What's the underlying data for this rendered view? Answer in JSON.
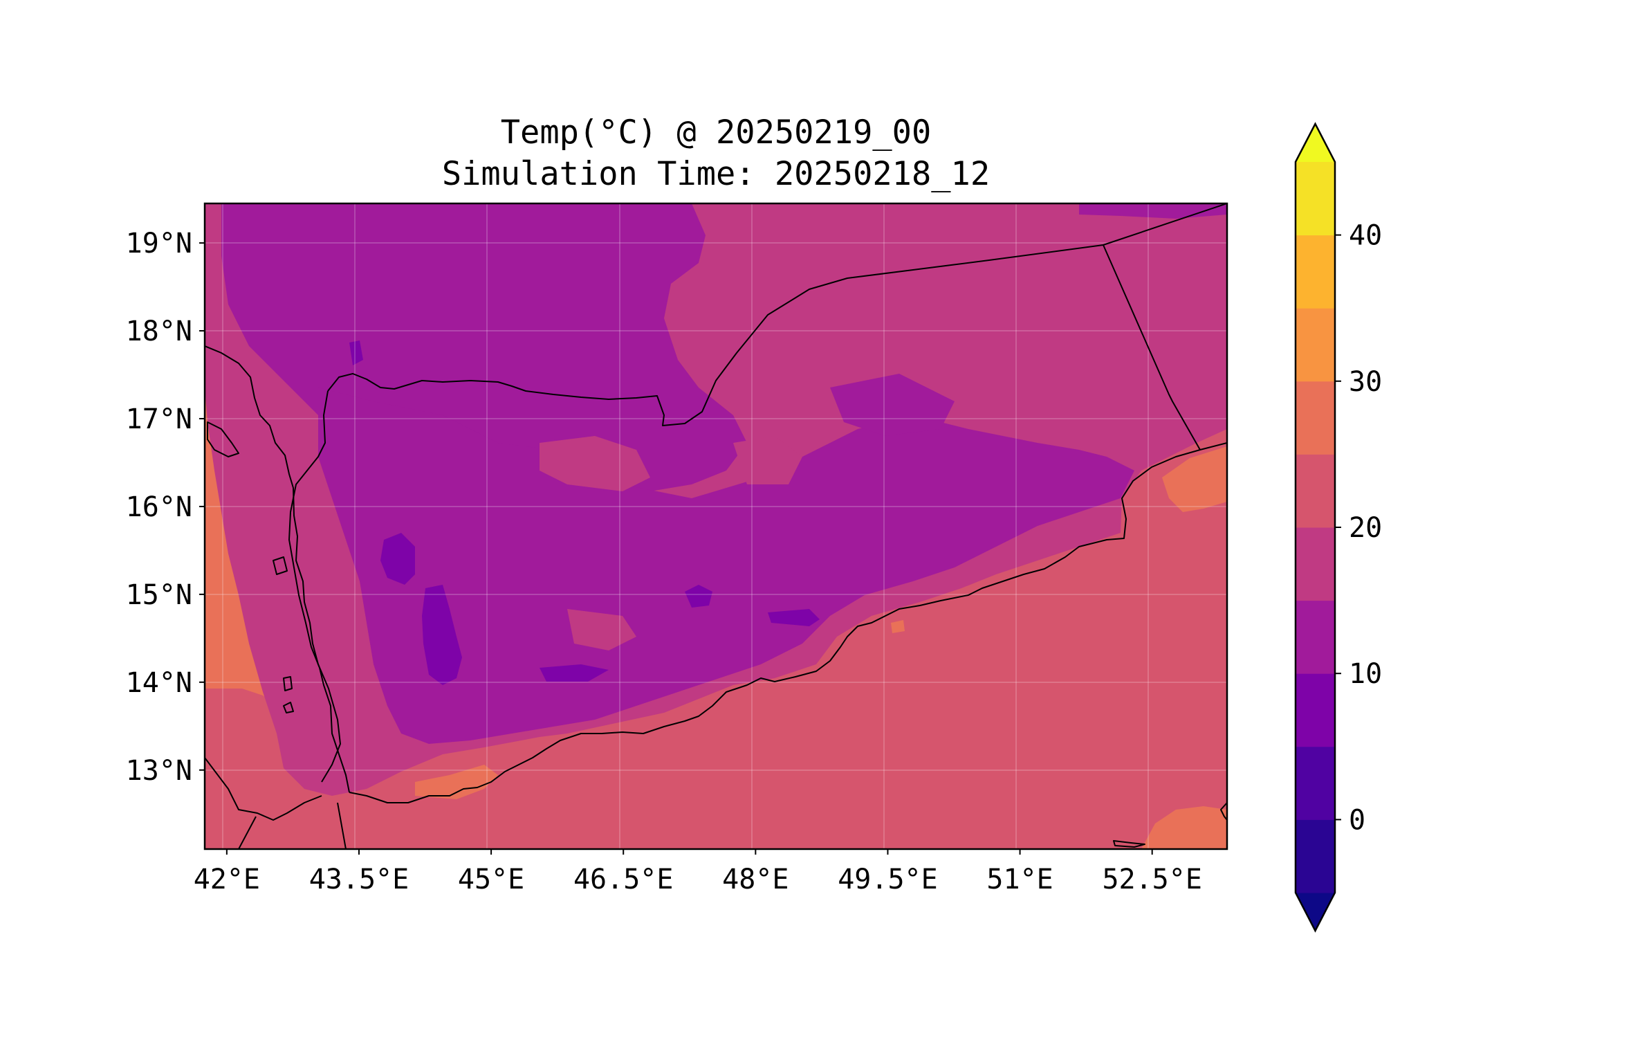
{
  "map": {
    "title_line1": "Temp(°C) @ 20250219_00",
    "title_line2": "Simulation Time: 20250218_12",
    "variable": "2 m air temperature",
    "units": "°C",
    "projection": "PlateCarree",
    "extent": {
      "lon_min": 41.75,
      "lon_max": 53.35,
      "lat_min": 12.1,
      "lat_max": 19.45
    },
    "lon_ticks": [
      {
        "value": 42,
        "label": "42°E"
      },
      {
        "value": 43.5,
        "label": "43.5°E"
      },
      {
        "value": 45,
        "label": "45°E"
      },
      {
        "value": 46.5,
        "label": "46.5°E"
      },
      {
        "value": 48,
        "label": "48°E"
      },
      {
        "value": 49.5,
        "label": "49.5°E"
      },
      {
        "value": 51,
        "label": "51°E"
      },
      {
        "value": 52.5,
        "label": "52.5°E"
      }
    ],
    "lat_ticks": [
      {
        "value": 19,
        "label": "19°N"
      },
      {
        "value": 18,
        "label": "18°N"
      },
      {
        "value": 17,
        "label": "17°N"
      },
      {
        "value": 16,
        "label": "16°N"
      },
      {
        "value": 15,
        "label": "15°N"
      },
      {
        "value": 14,
        "label": "14°N"
      },
      {
        "value": 13,
        "label": "13°N"
      }
    ],
    "gridlines": true,
    "features": [
      "coastlines",
      "country borders"
    ],
    "background_band_color": "#d6556d"
  },
  "colorbar": {
    "orientation": "vertical",
    "placement": "right",
    "extend": "both",
    "levels": [
      -5,
      0,
      5,
      10,
      15,
      20,
      25,
      30,
      35,
      40,
      45
    ],
    "under_color": "#0d0887",
    "over_color": "#f0f921",
    "band_colors": [
      "#2a0593",
      "#5002a2",
      "#7e03a8",
      "#a11b9b",
      "#c03a83",
      "#d6556d",
      "#e97158",
      "#f89441",
      "#fdb32f",
      "#f5e126"
    ],
    "ticks": [
      {
        "value": 0,
        "label": "0"
      },
      {
        "value": 10,
        "label": "10"
      },
      {
        "value": 20,
        "label": "20"
      },
      {
        "value": 30,
        "label": "30"
      },
      {
        "value": 40,
        "label": "40"
      }
    ]
  }
}
